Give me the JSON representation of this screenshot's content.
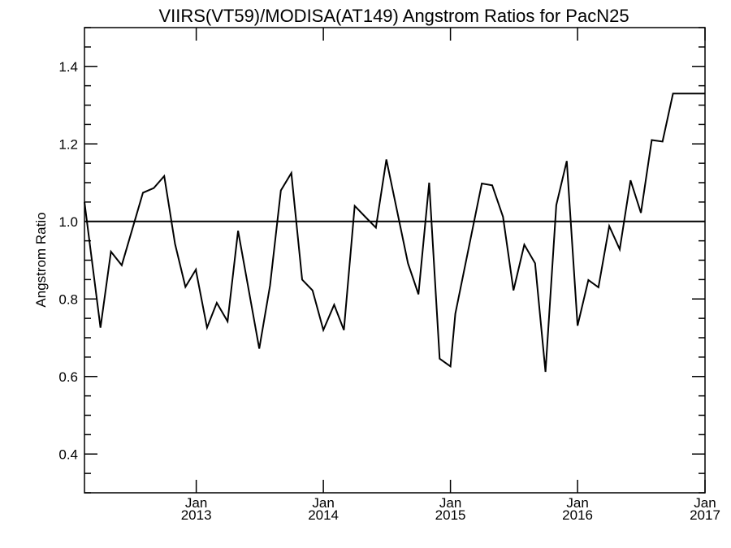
{
  "chart_data": {
    "type": "line",
    "title": "VIIRS(VT59)/MODISA(AT149)  Angstrom Ratios for PacN25",
    "xlabel": "",
    "ylabel": "Angstrom Ratio",
    "xlim": [
      "2012-02-15",
      "2017-01-01"
    ],
    "ylim": [
      0.3,
      1.5
    ],
    "yticks": [
      0.4,
      0.6,
      0.8,
      1.0,
      1.2,
      1.4
    ],
    "ytick_labels": [
      "0.4",
      "0.6",
      "0.8",
      "1.0",
      "1.2",
      "1.4"
    ],
    "xticks": [
      {
        "date": "2013-01-01",
        "month": "Jan",
        "year": "2013"
      },
      {
        "date": "2014-01-01",
        "month": "Jan",
        "year": "2014"
      },
      {
        "date": "2015-01-01",
        "month": "Jan",
        "year": "2015"
      },
      {
        "date": "2016-01-01",
        "month": "Jan",
        "year": "2016"
      },
      {
        "date": "2017-01-01",
        "month": "Jan",
        "year": "2017"
      }
    ],
    "reference_line": 1.0,
    "grid": false,
    "series": [
      {
        "x": [
          "2012-02-15",
          "2012-04-01",
          "2012-05-01",
          "2012-06-01",
          "2012-08-01",
          "2012-09-01",
          "2012-10-01",
          "2012-11-01",
          "2012-12-01",
          "2012-12-31",
          "2013-01-01",
          "2013-02-01",
          "2013-03-01",
          "2013-04-01",
          "2013-05-01",
          "2013-07-01",
          "2013-08-01",
          "2013-09-01",
          "2013-10-01",
          "2013-11-01",
          "2013-12-01",
          "2014-01-01",
          "2014-02-01",
          "2014-03-01",
          "2014-04-01",
          "2014-05-01",
          "2014-06-01",
          "2014-07-01",
          "2014-09-01",
          "2014-10-01",
          "2014-11-01",
          "2014-12-01",
          "2015-01-01",
          "2015-01-15",
          "2015-04-01",
          "2015-05-01",
          "2015-06-01",
          "2015-07-01",
          "2015-08-01",
          "2015-09-01",
          "2015-10-01",
          "2015-11-01",
          "2015-12-01",
          "2016-01-01",
          "2016-02-01",
          "2016-03-01",
          "2016-04-01",
          "2016-05-01",
          "2016-06-01",
          "2016-07-01",
          "2016-08-01",
          "2016-09-01",
          "2016-10-01",
          "2016-11-01",
          "2016-12-01",
          "2017-01-01"
        ],
        "y": [
          1.05,
          0.726,
          0.922,
          0.887,
          1.074,
          1.086,
          1.117,
          0.942,
          0.831,
          0.876,
          0.87,
          0.726,
          0.79,
          0.742,
          0.976,
          0.672,
          0.835,
          1.08,
          1.125,
          0.85,
          0.822,
          0.72,
          0.785,
          0.72,
          1.04,
          1.012,
          0.984,
          1.16,
          0.892,
          0.812,
          1.1,
          0.646,
          0.626,
          0.762,
          1.098,
          1.093,
          1.012,
          0.822,
          0.94,
          0.892,
          0.612,
          1.042,
          1.156,
          0.731,
          0.849,
          0.83,
          0.988,
          0.928,
          1.106,
          1.022,
          1.21,
          1.206,
          1.33,
          1.33,
          1.33,
          1.33
        ]
      }
    ]
  }
}
